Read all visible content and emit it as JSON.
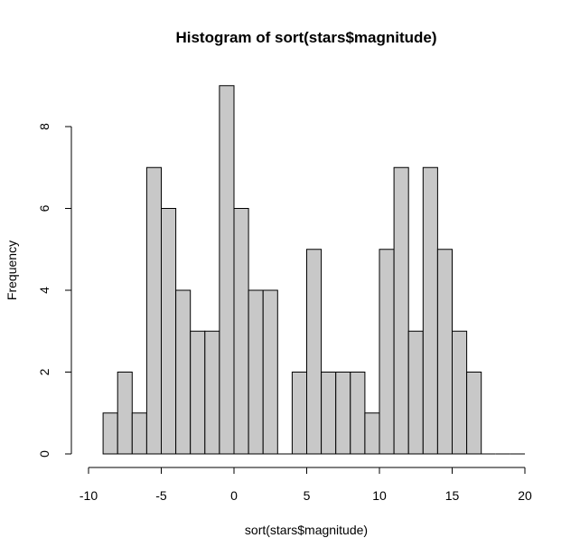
{
  "chart_data": {
    "type": "bar",
    "title": "Histogram of sort(stars$magnitude)",
    "xlabel": "sort(stars$magnitude)",
    "ylabel": "Frequency",
    "bin_width": 1,
    "x_bin_left_edges": [
      -9,
      -8,
      -7,
      -6,
      -5,
      -4,
      -3,
      -2,
      -1,
      0,
      1,
      2,
      3,
      4,
      5,
      6,
      7,
      8,
      9,
      10,
      11,
      12,
      13,
      14,
      15,
      16,
      17,
      18,
      19
    ],
    "values": [
      1,
      2,
      1,
      7,
      6,
      4,
      3,
      3,
      9,
      6,
      4,
      4,
      0,
      2,
      5,
      2,
      2,
      2,
      1,
      5,
      7,
      3,
      7,
      5,
      3,
      2,
      0,
      0,
      0
    ],
    "xlim": [
      -10,
      20
    ],
    "ylim": [
      0,
      9
    ],
    "x_ticks": [
      -10,
      -5,
      0,
      5,
      10,
      15,
      20
    ],
    "x_tick_labels": [
      "-10",
      "-5",
      "0",
      "5",
      "10",
      "15",
      "20"
    ],
    "y_ticks": [
      0,
      2,
      4,
      6,
      8
    ],
    "y_tick_labels": [
      "0",
      "2",
      "4",
      "6",
      "8"
    ],
    "bar_fill": "#c8c8c8",
    "bar_stroke": "#000000",
    "grid": false,
    "legend": "none"
  }
}
